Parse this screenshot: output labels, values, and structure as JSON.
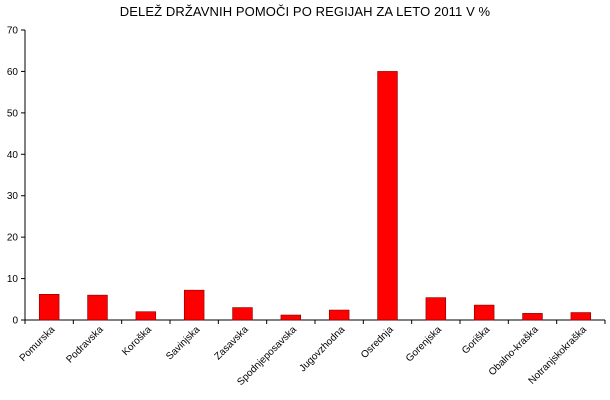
{
  "chart_data": {
    "type": "bar",
    "title": "DELEŽ DRŽAVNIH POMOČI PO REGIJAH ZA LETO 2011 V %",
    "xlabel": "",
    "ylabel": "",
    "ylim": [
      0,
      70
    ],
    "yticks": [
      "0",
      "10",
      "20",
      "30",
      "40",
      "50",
      "60",
      "70"
    ],
    "grid": false,
    "legend": "none",
    "bar_color": "#ff0000",
    "bar_edge_color": "#800000",
    "categories": [
      "Pomurska",
      "Podravska",
      "Koroška",
      "Savinjska",
      "Zasavska",
      "Spodnjeposavska",
      "Jugovzhodna",
      "Osrednja",
      "Gorenjska",
      "Goriška",
      "Obalno-kraška",
      "Notranjskokraška"
    ],
    "values": [
      6.2,
      6.0,
      2.0,
      7.2,
      3.0,
      1.2,
      2.4,
      60.0,
      5.4,
      3.6,
      1.6,
      1.8
    ]
  }
}
